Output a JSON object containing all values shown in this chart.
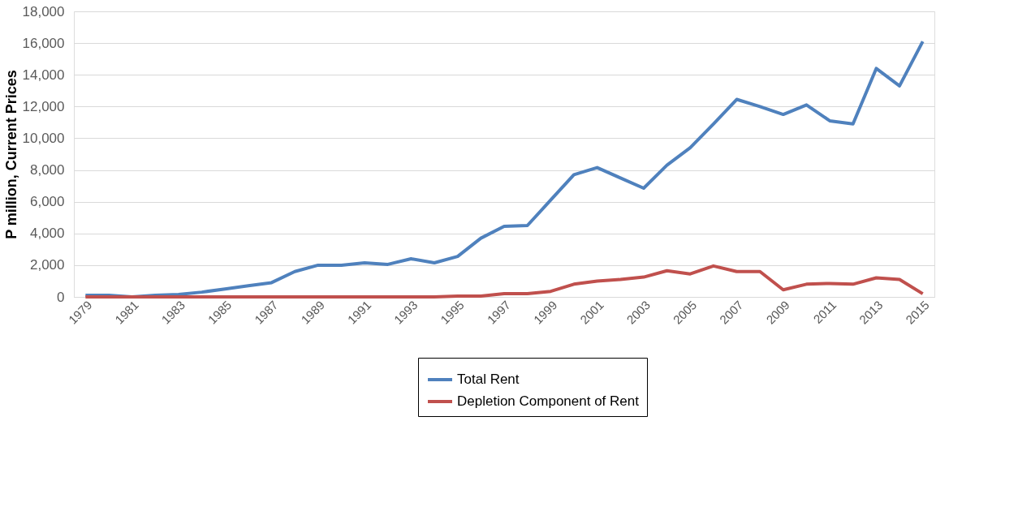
{
  "chart_data": {
    "type": "line",
    "ylabel": "P million, Current Prices",
    "categories": [
      "1979",
      null,
      "1981",
      null,
      "1983",
      null,
      "1985",
      null,
      "1987",
      null,
      "1989",
      null,
      "1991",
      null,
      "1993",
      null,
      "1995",
      null,
      "1997",
      null,
      "1999",
      null,
      "2001",
      null,
      "2003",
      null,
      "2005",
      null,
      "2007",
      null,
      "2009",
      null,
      "2011",
      null,
      "2013",
      null,
      "2015"
    ],
    "series": [
      {
        "name": "Total Rent",
        "color": "#4f81bd",
        "values": [
          100,
          100,
          0,
          100,
          150,
          300,
          500,
          700,
          900,
          1600,
          2000,
          2000,
          2150,
          2050,
          2400,
          2150,
          2550,
          3700,
          4450,
          4500,
          6100,
          7700,
          8150,
          7500,
          6850,
          8300,
          9400,
          10900,
          12450,
          12000,
          11500,
          12100,
          11100,
          10900,
          14400,
          13300,
          16100
        ]
      },
      {
        "name": "Depletion Component of Rent",
        "color": "#c0504d",
        "values": [
          0,
          0,
          0,
          0,
          0,
          0,
          0,
          0,
          0,
          0,
          0,
          0,
          0,
          0,
          0,
          0,
          50,
          50,
          200,
          200,
          350,
          800,
          1000,
          1100,
          1250,
          1650,
          1450,
          1950,
          1600,
          1600,
          450,
          800,
          850,
          800,
          1200,
          1100,
          200
        ]
      }
    ],
    "ylim": [
      0,
      18000
    ],
    "yticks": [
      0,
      {
        "value": 2000,
        "label": "2,000"
      },
      {
        "value": 4000,
        "label": "4,000"
      },
      {
        "value": 6000,
        "label": "6,000"
      },
      {
        "value": 8000,
        "label": "8,000"
      },
      {
        "value": 10000,
        "label": "10,000"
      },
      {
        "value": 12000,
        "label": "12,000"
      },
      {
        "value": 14000,
        "label": "14,000"
      },
      {
        "value": 16000,
        "label": "16,000"
      },
      {
        "value": 18000,
        "label": "18,000"
      }
    ],
    "grid": "y",
    "legend": "bottom",
    "marker": "none",
    "line_style": "solid"
  }
}
